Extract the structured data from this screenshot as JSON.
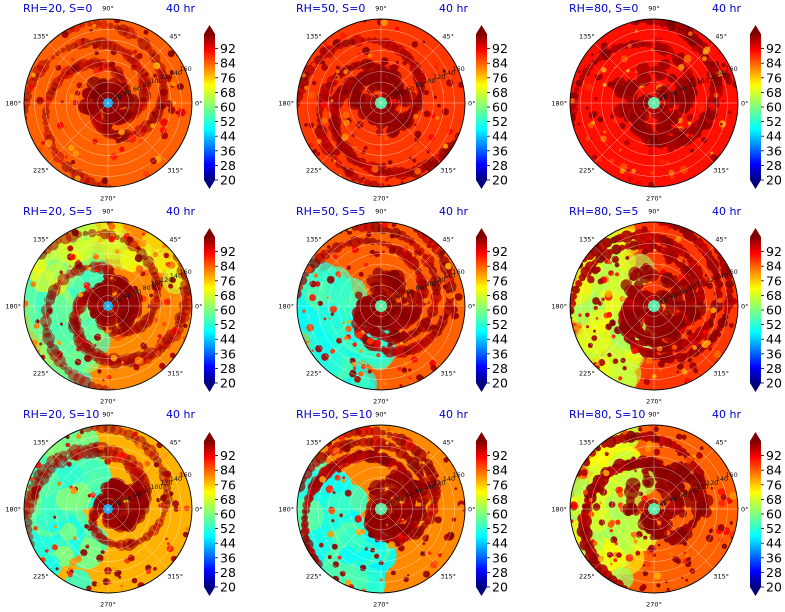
{
  "chart_data": [
    {
      "type": "heatmap",
      "projection": "polar",
      "title": "RH=20, S=0",
      "time_label": "40 hr",
      "rh": 20,
      "s": 0
    },
    {
      "type": "heatmap",
      "projection": "polar",
      "title": "RH=50, S=0",
      "time_label": "40 hr",
      "rh": 50,
      "s": 0
    },
    {
      "type": "heatmap",
      "projection": "polar",
      "title": "RH=80, S=0",
      "time_label": "40 hr",
      "rh": 80,
      "s": 0
    },
    {
      "type": "heatmap",
      "projection": "polar",
      "title": "RH=20, S=5",
      "time_label": "40 hr",
      "rh": 20,
      "s": 5
    },
    {
      "type": "heatmap",
      "projection": "polar",
      "title": "RH=50, S=5",
      "time_label": "40 hr",
      "rh": 50,
      "s": 5
    },
    {
      "type": "heatmap",
      "projection": "polar",
      "title": "RH=80, S=5",
      "time_label": "40 hr",
      "rh": 80,
      "s": 5
    },
    {
      "type": "heatmap",
      "projection": "polar",
      "title": "RH=20, S=10",
      "time_label": "40 hr",
      "rh": 20,
      "s": 10
    },
    {
      "type": "heatmap",
      "projection": "polar",
      "title": "RH=50, S=10",
      "time_label": "40 hr",
      "rh": 50,
      "s": 10
    },
    {
      "type": "heatmap",
      "projection": "polar",
      "title": "RH=80, S=10",
      "time_label": "40 hr",
      "rh": 80,
      "s": 10
    }
  ],
  "shared": {
    "angle_labels": [
      "0°",
      "45°",
      "90°",
      "135°",
      "180°",
      "225°",
      "270°",
      "315°"
    ],
    "angle_degrees": [
      0,
      45,
      90,
      135,
      180,
      225,
      270,
      315
    ],
    "radial_labels": [
      "20",
      "40",
      "60",
      "80",
      "100",
      "120",
      "140",
      "160"
    ],
    "radial_max": 160,
    "colorbar": {
      "ticks": [
        "92",
        "84",
        "76",
        "68",
        "60",
        "52",
        "44",
        "36",
        "28",
        "20"
      ],
      "min": 20,
      "max": 100,
      "colormap": "jet",
      "extend": "both"
    }
  }
}
